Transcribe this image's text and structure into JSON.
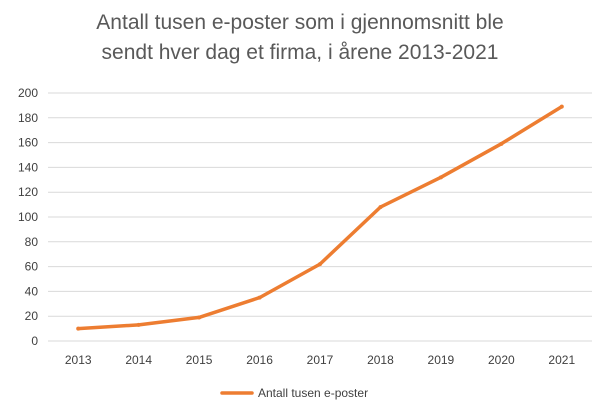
{
  "chart_data": {
    "type": "line",
    "title": "Antall tusen e-poster som i gjennomsnitt ble sendt hver dag et firma, i årene 2013-2021",
    "title_lines": [
      "Antall tusen e-poster som i gjennomsnitt ble",
      "sendt hver dag et firma, i årene 2013-2021"
    ],
    "categories": [
      "2013",
      "2014",
      "2015",
      "2016",
      "2017",
      "2018",
      "2019",
      "2020",
      "2021"
    ],
    "series": [
      {
        "name": "Antall tusen e-poster",
        "values": [
          10,
          13,
          19,
          35,
          62,
          108,
          132,
          159,
          189
        ],
        "color": "#ED7D31"
      }
    ],
    "xlabel": "",
    "ylabel": "",
    "ylim": [
      0,
      200
    ],
    "yticks": [
      0,
      20,
      40,
      60,
      80,
      100,
      120,
      140,
      160,
      180,
      200
    ],
    "grid": true,
    "legend_position": "bottom",
    "colors": {
      "grid": "#D9D9D9",
      "text": "#595959",
      "line": "#ED7D31"
    }
  }
}
